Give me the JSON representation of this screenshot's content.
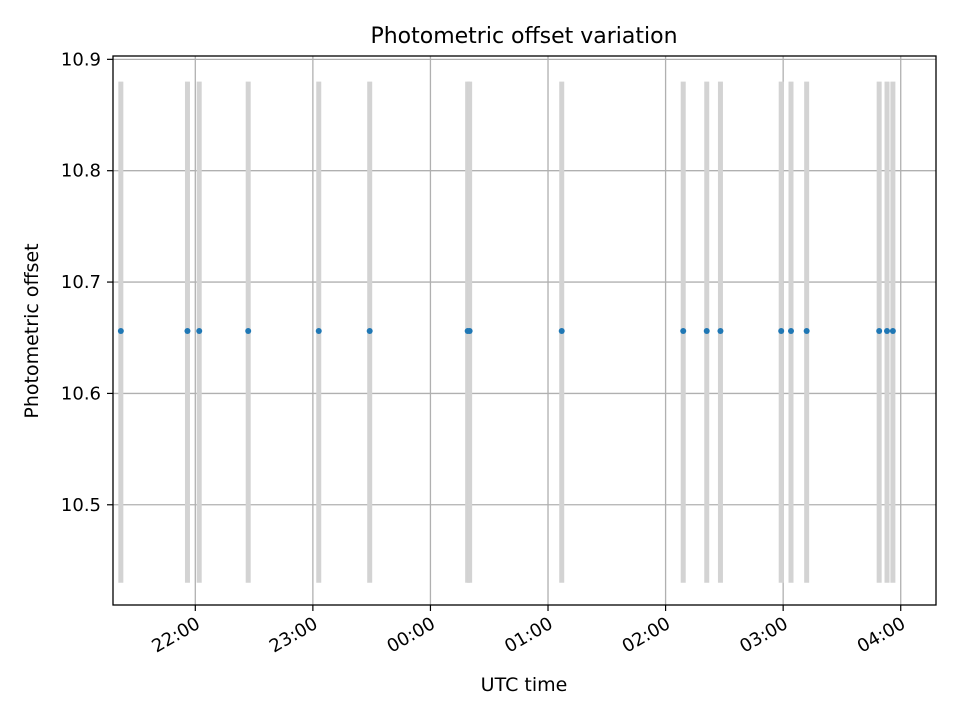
{
  "chart_data": {
    "type": "scatter",
    "title": "Photometric offset variation",
    "xlabel": "UTC time",
    "ylabel": "Photometric offset",
    "x_axis": {
      "kind": "time",
      "range": [
        "21:18",
        "04:18"
      ],
      "ticks": [
        "22:00",
        "23:00",
        "00:00",
        "01:00",
        "02:00",
        "03:00",
        "04:00"
      ]
    },
    "y_axis": {
      "range": [
        10.41,
        10.903
      ],
      "ticks": [
        "10.5",
        "10.6",
        "10.7",
        "10.8",
        "10.9"
      ]
    },
    "grid": true,
    "colors": {
      "points": "#1f77b4",
      "bars": "#d3d3d3"
    },
    "bar_range": [
      10.43,
      10.88
    ],
    "series": [
      {
        "x": [
          "21:22",
          "21:56",
          "22:02",
          "22:27",
          "23:03",
          "23:29",
          "00:19",
          "00:20",
          "01:07",
          "02:09",
          "02:21",
          "02:28",
          "02:59",
          "03:04",
          "03:12",
          "03:49",
          "03:53",
          "03:56"
        ],
        "y": [
          10.656,
          10.656,
          10.656,
          10.656,
          10.656,
          10.656,
          10.656,
          10.656,
          10.656,
          10.656,
          10.656,
          10.656,
          10.656,
          10.656,
          10.656,
          10.656,
          10.656,
          10.656
        ]
      }
    ]
  }
}
